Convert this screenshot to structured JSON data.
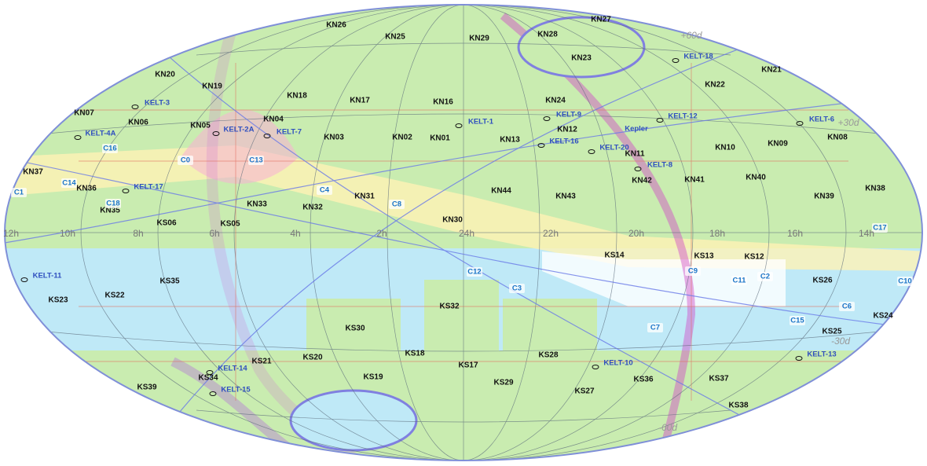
{
  "map": {
    "field_labels": [
      "KN26",
      "KN25",
      "KN29",
      "KN27",
      "KN28",
      "KN23",
      "KN20",
      "KN19",
      "KN18",
      "KN17",
      "KN16",
      "KN24",
      "KN22",
      "KN21",
      "KN07",
      "KN06",
      "KN05",
      "KN04",
      "KN03",
      "KN02",
      "KN01",
      "KN13",
      "KN12",
      "KN11",
      "KN10",
      "KN09",
      "KN08",
      "KN37",
      "KN36",
      "KN35",
      "KS06",
      "KS05",
      "KN33",
      "KN32",
      "KN31",
      "KN30",
      "KN44",
      "KN43",
      "KN42",
      "KN41",
      "KN40",
      "KN39",
      "KN38",
      "KS14",
      "KS13",
      "KS12",
      "KS26",
      "KS35",
      "KS22",
      "KS23",
      "KS32",
      "KS30",
      "KS25",
      "KS24",
      "KS18",
      "KS17",
      "KS28",
      "KS29",
      "KS27",
      "KS36",
      "KS37",
      "KS38",
      "KS20",
      "KS21",
      "KS19",
      "KS34",
      "KS39"
    ],
    "kelt_labels": [
      "KELT-3",
      "KELT-4A",
      "KELT-2A",
      "KELT-7",
      "KELT-1",
      "KELT-9",
      "KELT-16",
      "KELT-20",
      "KELT-8",
      "KELT-12",
      "KELT-6",
      "KELT-18",
      "KELT-17",
      "KELT-11",
      "KELT-10",
      "KELT-13",
      "KELT-14",
      "KELT-15",
      "Kepler"
    ],
    "campaign_labels": [
      "C16",
      "C0",
      "C13",
      "C4",
      "C14",
      "C1",
      "C18",
      "C8",
      "C12",
      "C3",
      "C9",
      "C11",
      "C2",
      "C15",
      "C6",
      "C7",
      "C17",
      "C10"
    ],
    "ra_labels": [
      "12h",
      "10h",
      "8h",
      "6h",
      "4h",
      "2h",
      "24h",
      "22h",
      "20h",
      "18h",
      "16h",
      "14h"
    ],
    "dec_labels": [
      "+60d",
      "+30d",
      "-30d",
      "-60d"
    ]
  }
}
